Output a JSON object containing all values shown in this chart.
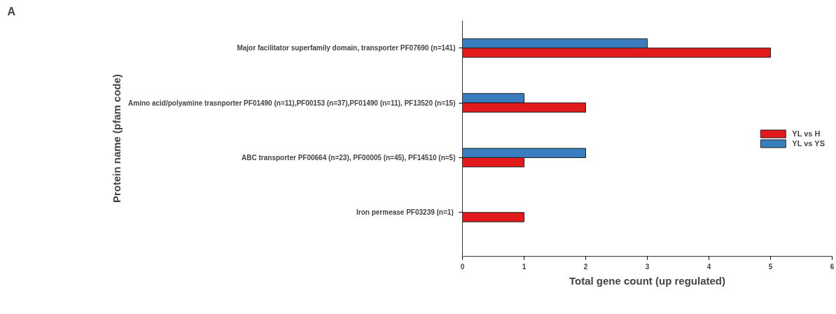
{
  "chart_data": {
    "type": "bar",
    "orientation": "horizontal",
    "annotations": [
      "A"
    ],
    "xlabel": "Total gene count (up regulated)",
    "ylabel": "Protein name (pfam code)",
    "categories": [
      "Major facilitator superfamily domain, transporter PF07690 (n=141)",
      "Amino acid/polyamine trasnporter PF01490 (n=11),PF00153 (n=37),PF01490 (n=11), PF13520 (n=15)",
      "ABC transporter PF00664 (n=23), PF00005 (n=45), PF14510 (n=5)",
      "Iron permease  PF03239 (n=1)"
    ],
    "series": [
      {
        "name": "YL vs YS",
        "color": "#3a7dbf",
        "values": [
          3,
          1,
          2,
          null
        ]
      },
      {
        "name": "YL vs H",
        "color": "#e31a1c",
        "values": [
          5,
          2,
          1,
          1
        ]
      }
    ],
    "xlim": [
      0,
      6
    ],
    "xticks": [
      0,
      1,
      2,
      3,
      4,
      5,
      6
    ],
    "grid": false,
    "legend": "right"
  }
}
